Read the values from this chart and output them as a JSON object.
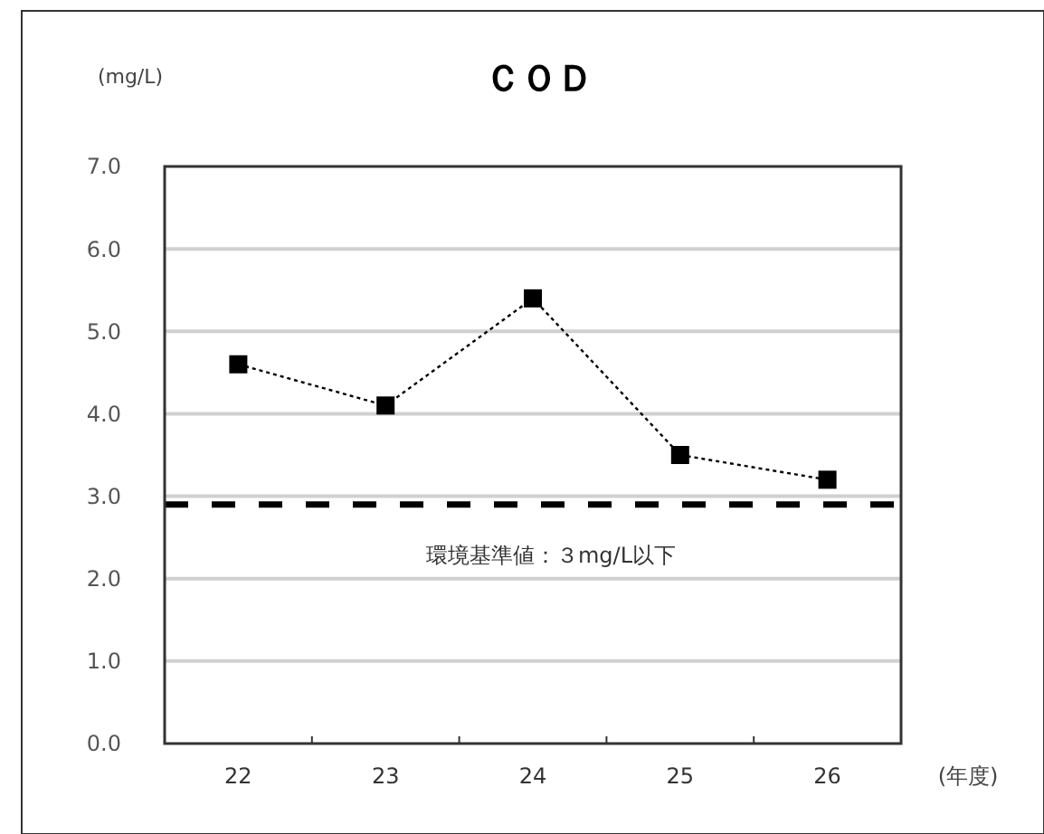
{
  "chart_data": {
    "type": "line",
    "title": "ＣＯＤ",
    "ylabel": "(mg/L)",
    "xlabel": "(年度)",
    "categories": [
      "22",
      "23",
      "24",
      "25",
      "26"
    ],
    "series": [
      {
        "color": "#000000",
        "values": [
          4.6,
          4.1,
          5.4,
          3.5,
          3.2
        ]
      }
    ],
    "ylim": [
      0,
      7
    ],
    "yticks": [
      {
        "value": 0,
        "label": "0.0"
      },
      {
        "value": 1,
        "label": "1.0"
      },
      {
        "value": 2,
        "label": "2.0"
      },
      {
        "value": 3,
        "label": "3.0"
      },
      {
        "value": 4,
        "label": "4.0"
      },
      {
        "value": 5,
        "label": "5.0"
      },
      {
        "value": 6,
        "label": "6.0"
      },
      {
        "value": 7,
        "label": "7.0"
      }
    ],
    "grid": "y",
    "marker": "square",
    "line_style": "dotted",
    "ref_lines": [
      {
        "axis": "y",
        "value": 2.9,
        "label": "環境基準値：３mg/L以下",
        "color": "#000000",
        "line_style": "dashed"
      }
    ]
  }
}
